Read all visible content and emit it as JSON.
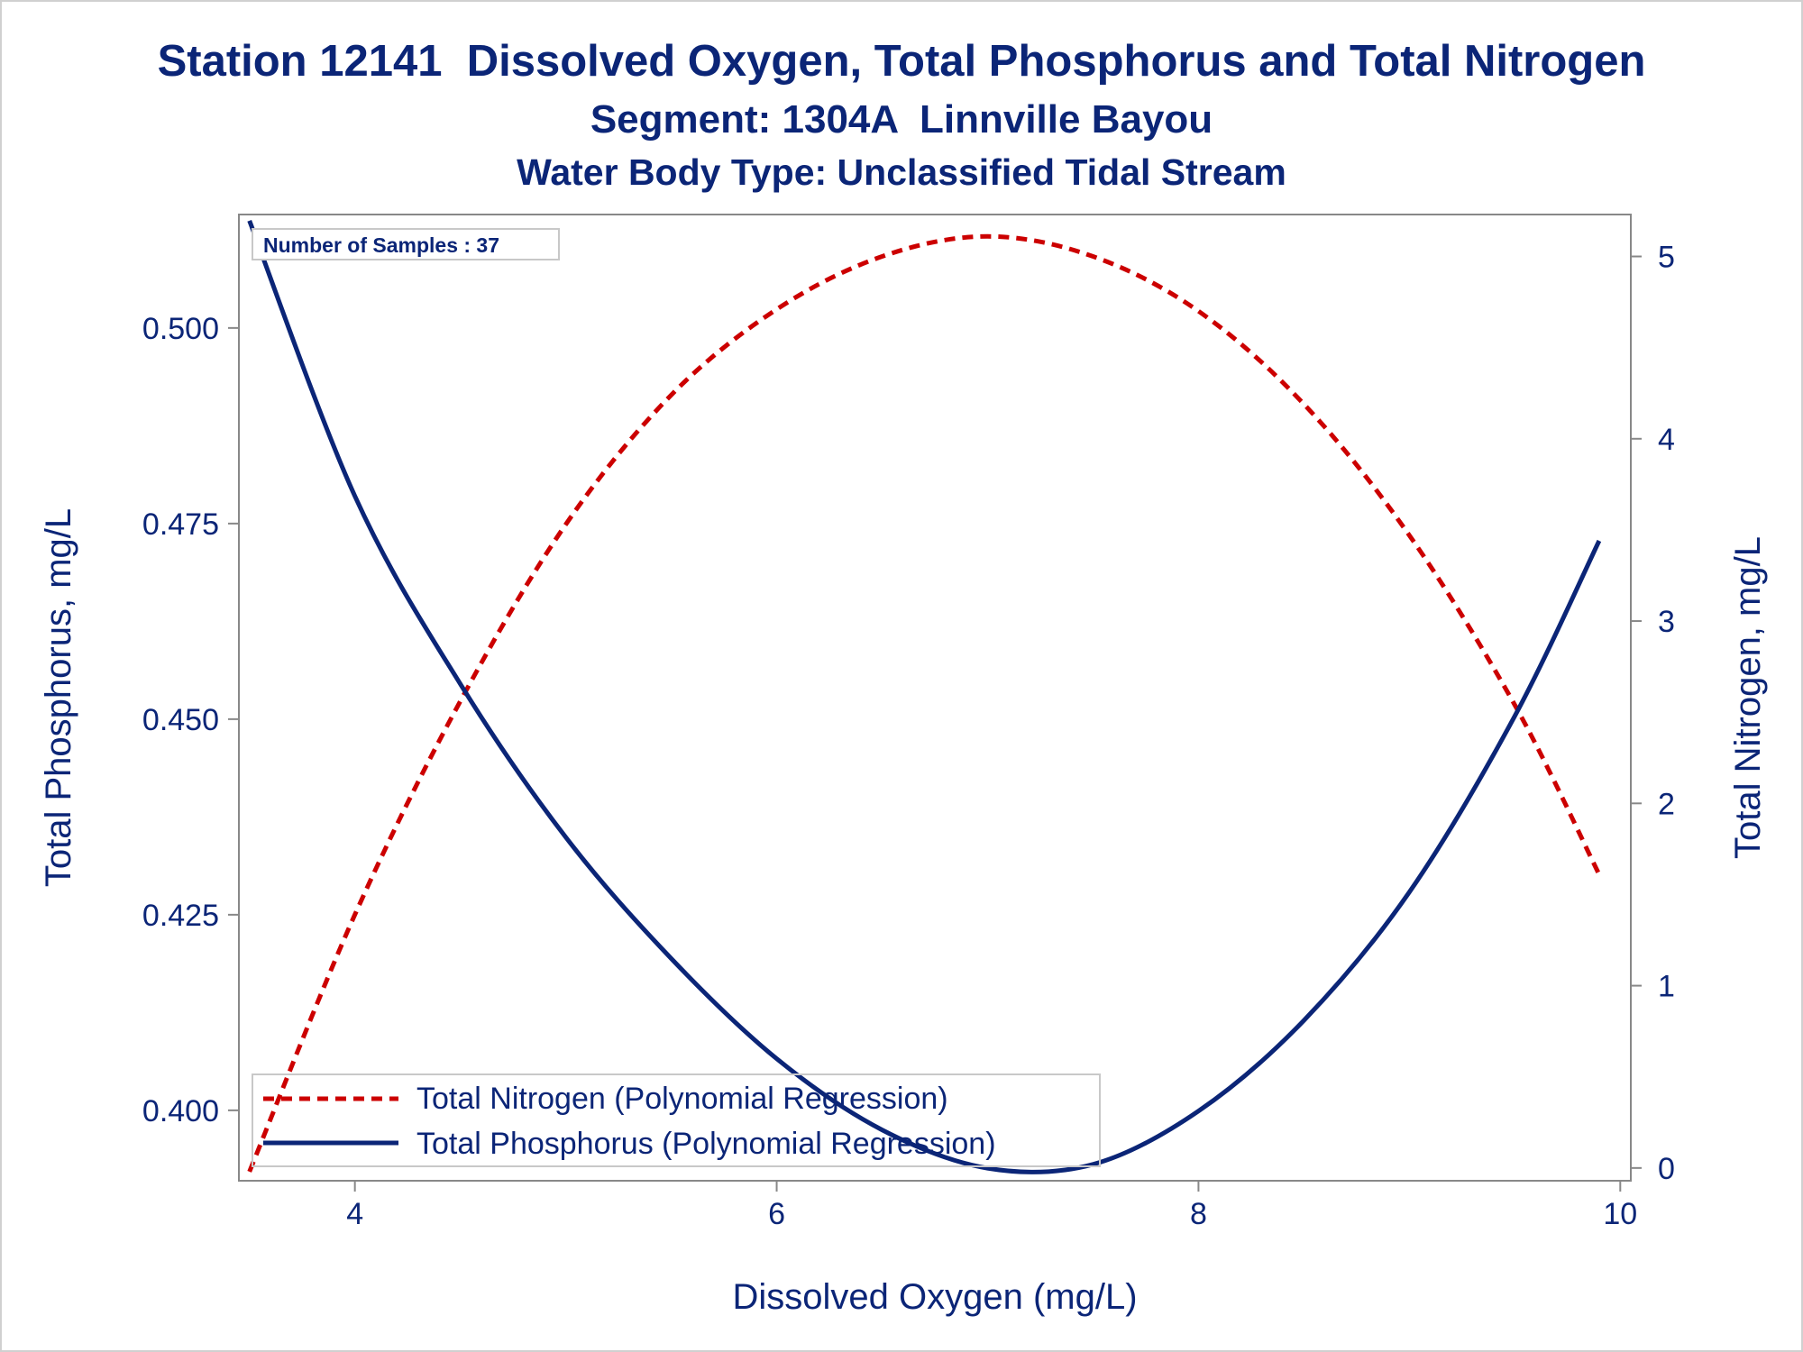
{
  "title": "Station 12141  Dissolved Oxygen, Total Phosphorus and Total Nitrogen",
  "subtitle1": "Segment: 1304A  Linnville Bayou",
  "subtitle2": "Water Body Type: Unclassified Tidal Stream",
  "inset_label": "Number of Samples : 37",
  "colors": {
    "text": "#0b2577",
    "phosphorus": "#0b2577",
    "nitrogen": "#cc0000",
    "axis": "#888888"
  },
  "chart_data": {
    "type": "line",
    "xlabel": "Dissolved Oxygen (mg/L)",
    "ylabel": "Total Phosphorus, mg/L",
    "y2label": "Total Nitrogen, mg/L",
    "xlim": [
      3.45,
      10.05
    ],
    "ylim": [
      0.391,
      0.5145
    ],
    "y2lim": [
      -0.07,
      5.23
    ],
    "xticks": [
      4,
      6,
      8,
      10
    ],
    "xtick_labels": [
      "4",
      "6",
      "8",
      "10"
    ],
    "yticks": [
      0.4,
      0.425,
      0.45,
      0.475,
      0.5
    ],
    "ytick_labels": [
      "0.400",
      "0.425",
      "0.450",
      "0.475",
      "0.500"
    ],
    "y2ticks": [
      0,
      1,
      2,
      3,
      4,
      5
    ],
    "y2tick_labels": [
      "0",
      "1",
      "2",
      "3",
      "4",
      "5"
    ],
    "grid": false,
    "legend_position": "bottom-left",
    "series": [
      {
        "name": "Total Nitrogen (Polynomial Regression)",
        "axis": "right",
        "style": "dashed",
        "color": "#cc0000",
        "x": [
          3.5,
          4.0,
          4.5,
          5.0,
          5.5,
          6.0,
          6.5,
          7.0,
          7.5,
          8.0,
          8.5,
          9.0,
          9.5,
          9.9
        ],
        "values": [
          -0.02,
          1.39,
          2.56,
          3.53,
          4.24,
          4.71,
          5.0,
          5.11,
          5.0,
          4.7,
          4.19,
          3.47,
          2.54,
          1.61
        ]
      },
      {
        "name": "Total Phosphorus (Polynomial Regression)",
        "axis": "left",
        "style": "solid",
        "color": "#0b2577",
        "x": [
          3.5,
          4.0,
          4.5,
          5.0,
          5.5,
          6.0,
          6.5,
          7.0,
          7.5,
          8.0,
          8.5,
          9.0,
          9.5,
          9.9
        ],
        "values": [
          0.5137,
          0.4785,
          0.4545,
          0.4349,
          0.4194,
          0.4066,
          0.3975,
          0.3926,
          0.3931,
          0.3999,
          0.4115,
          0.4279,
          0.4504,
          0.4728
        ]
      }
    ]
  }
}
